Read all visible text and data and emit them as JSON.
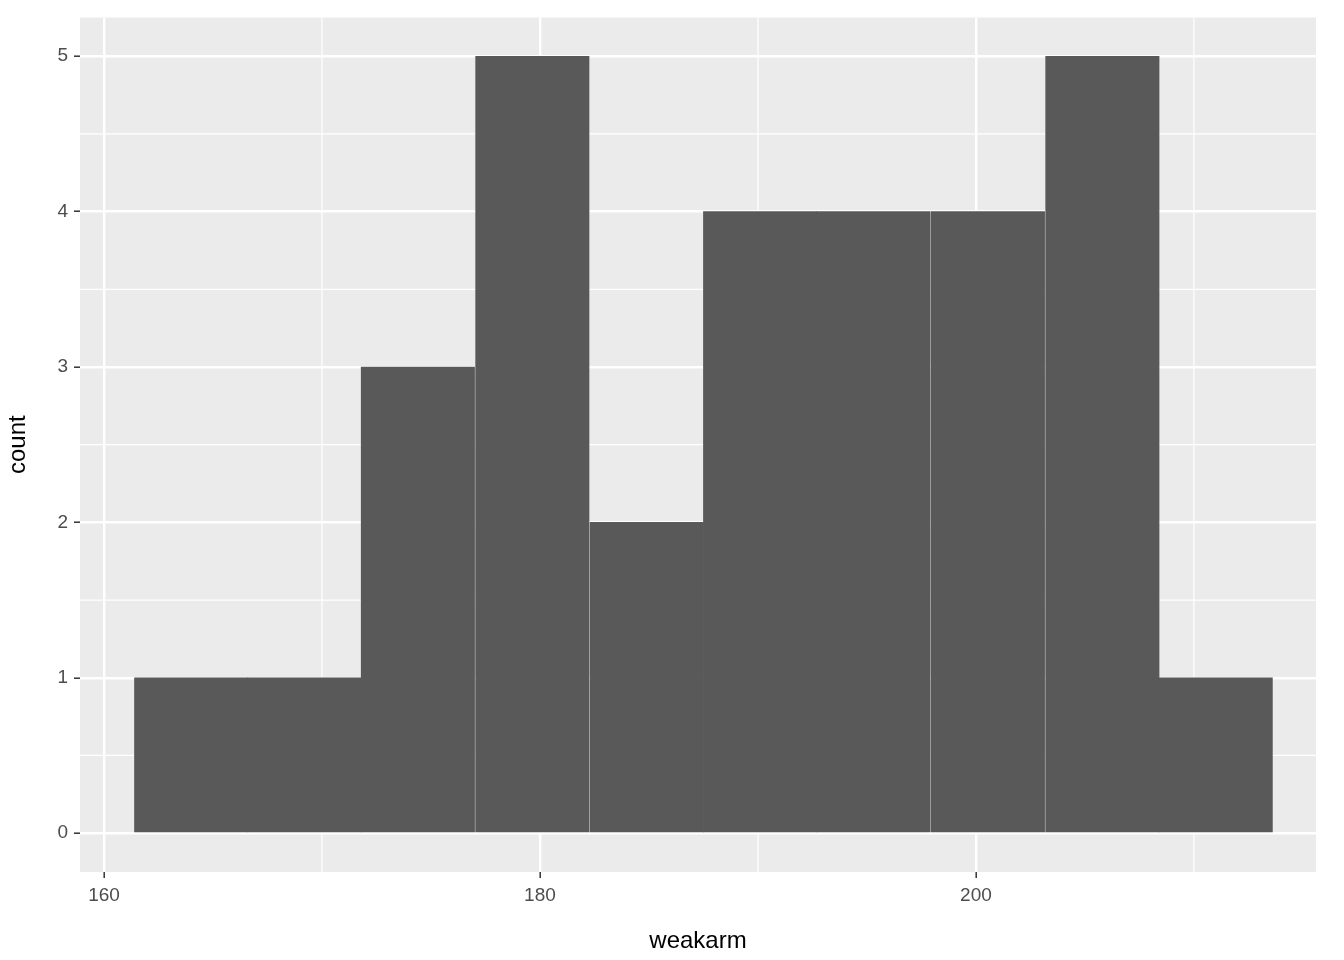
{
  "chart_data": {
    "type": "histogram",
    "xlabel": "weakarm",
    "ylabel": "count",
    "bins": [
      161.4,
      166.6,
      171.8,
      177.0,
      182.3,
      187.5,
      192.7,
      197.9,
      203.2,
      208.4,
      213.6
    ],
    "values": [
      1,
      1,
      3,
      5,
      2,
      4,
      4,
      4,
      5,
      1
    ],
    "color": "#595959",
    "xlim": [
      158.9,
      215.6
    ],
    "xticks": [
      160,
      180,
      200
    ],
    "ylim": [
      -0.25,
      5.25
    ],
    "yticks": [
      0,
      1,
      2,
      3,
      4,
      5
    ],
    "grid": true,
    "legend": false
  }
}
